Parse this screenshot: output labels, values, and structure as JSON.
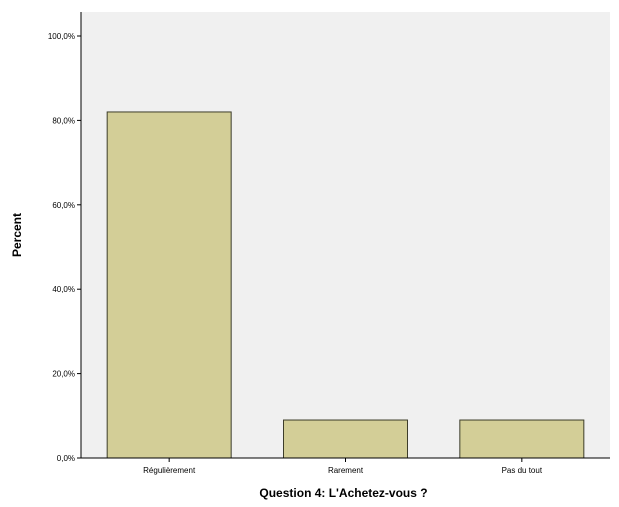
{
  "chart_data": {
    "type": "bar",
    "categories": [
      "Régulièrement",
      "Rarement",
      "Pas du tout"
    ],
    "values": [
      82.0,
      9.0,
      9.0
    ],
    "xlabel": "Question 4: L'Achetez-vous ?",
    "ylabel": "Percent",
    "ylim": [
      0,
      100
    ],
    "yticks": [
      0,
      20,
      40,
      60,
      80,
      100
    ],
    "ytick_labels": [
      "0,0%",
      "20,0%",
      "40,0%",
      "60,0%",
      "80,0%",
      "100,0%"
    ],
    "grid": false,
    "colors": {
      "plot_background": "#f0f0f0",
      "bar_fill": "#d3ce97",
      "bar_stroke": "#3d3d2a",
      "axis": "#000000"
    }
  }
}
